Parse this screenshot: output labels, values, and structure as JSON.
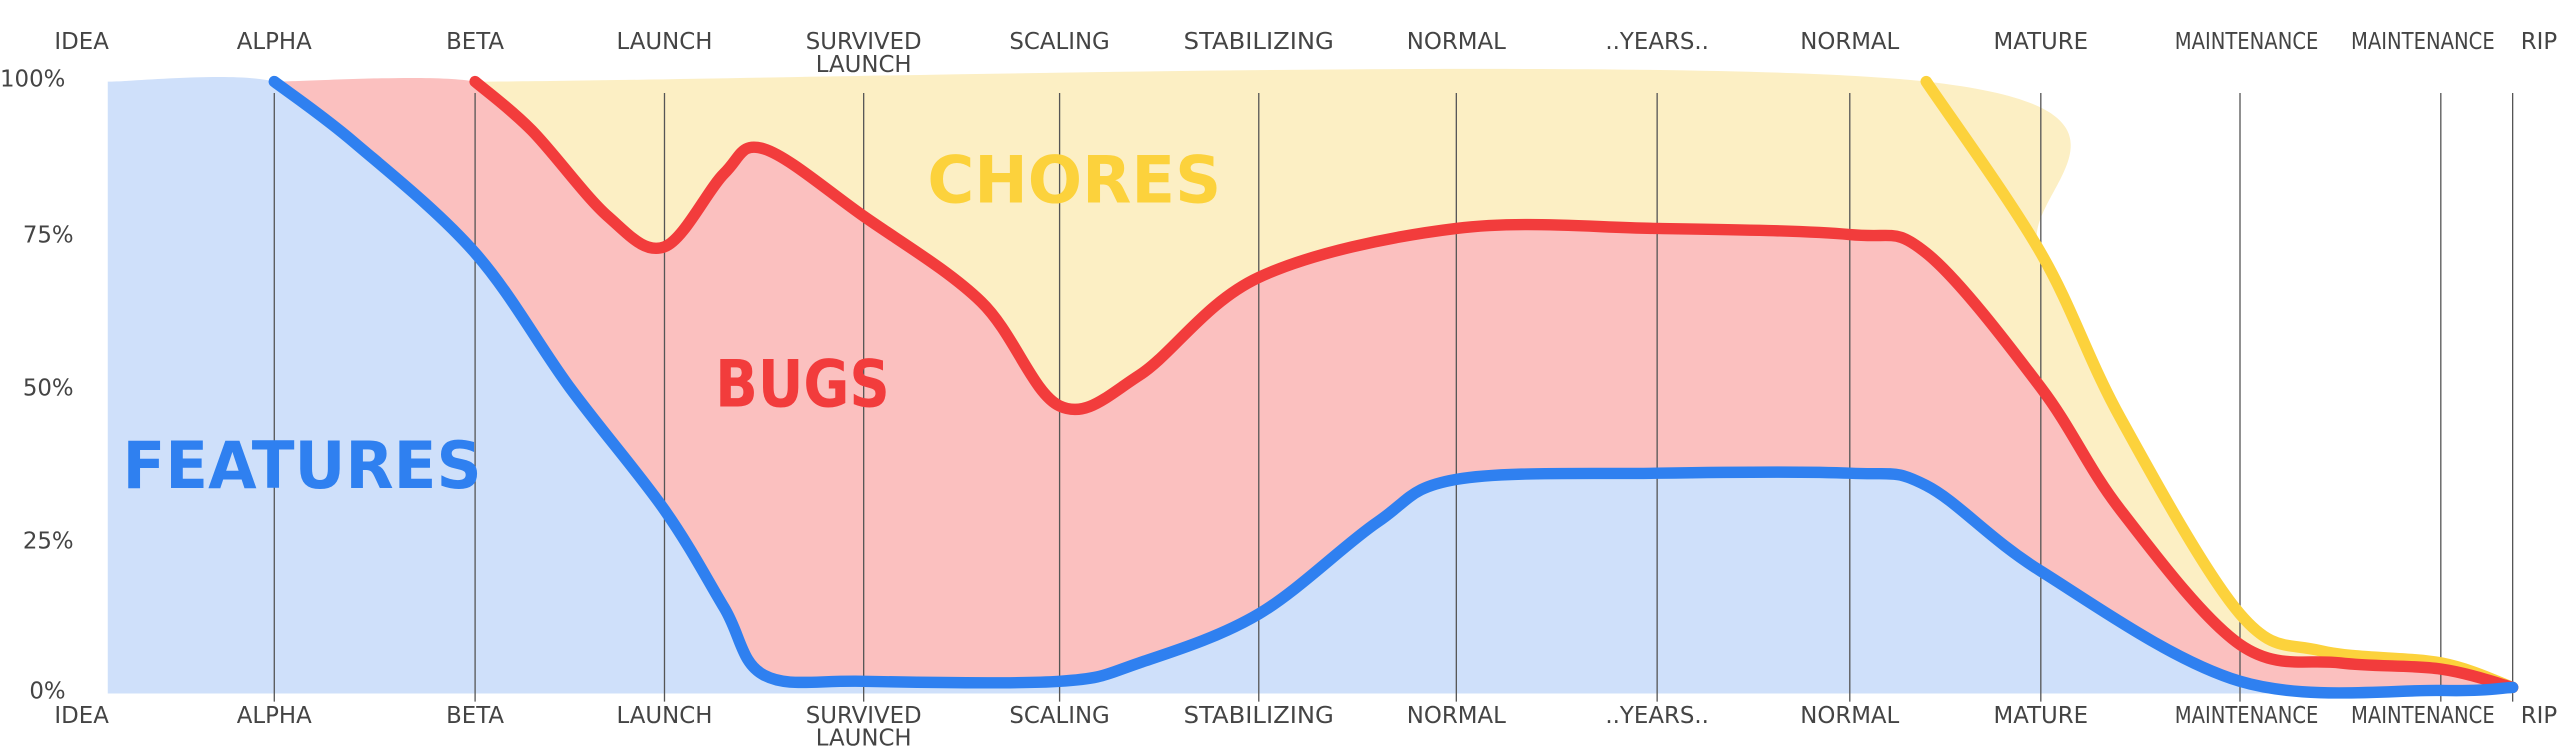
{
  "chart_data": {
    "type": "area",
    "stacked": true,
    "title": "",
    "xlabel": "",
    "ylabel": "",
    "ylim": [
      0,
      100
    ],
    "y_ticks": [
      "0%",
      "25%",
      "50%",
      "75%",
      "100%"
    ],
    "y_tick_values": [
      0,
      25,
      50,
      75,
      100
    ],
    "categories": [
      "IDEA",
      "ALPHA",
      "BETA",
      "LAUNCH",
      "SURVIVED LAUNCH",
      "SCALING",
      "STABILIZING",
      "NORMAL",
      "..YEARS..",
      "NORMAL",
      "MATURE",
      "MAINTENANCE",
      "MAINTENANCE",
      "RIP"
    ],
    "grid": "vertical lines at each stage",
    "legend": "labels inside areas",
    "series": [
      {
        "name": "FEATURES",
        "color": "#2f80f0",
        "fill": "#cfe0fa",
        "points": [
          [
            0,
            100
          ],
          [
            1,
            100
          ],
          [
            1.4,
            90
          ],
          [
            2,
            72
          ],
          [
            2.5,
            50
          ],
          [
            3,
            30
          ],
          [
            3.3,
            14
          ],
          [
            3.5,
            3
          ],
          [
            4,
            2
          ],
          [
            5,
            2
          ],
          [
            5.4,
            5
          ],
          [
            6,
            13
          ],
          [
            6.6,
            28
          ],
          [
            7,
            35
          ],
          [
            8,
            36
          ],
          [
            9,
            36
          ],
          [
            9.4,
            34
          ],
          [
            10,
            20
          ],
          [
            11,
            2
          ],
          [
            12,
            0.5
          ],
          [
            13,
            1
          ]
        ]
      },
      {
        "name": "BUGS",
        "color": "#f23c3c",
        "fill": "#fbc0bf",
        "points": [
          [
            1,
            100
          ],
          [
            2,
            100
          ],
          [
            2.3,
            92
          ],
          [
            2.7,
            78
          ],
          [
            3,
            73
          ],
          [
            3.3,
            85
          ],
          [
            3.5,
            89
          ],
          [
            4,
            78
          ],
          [
            4.6,
            64
          ],
          [
            5,
            47
          ],
          [
            5.4,
            52
          ],
          [
            6,
            68
          ],
          [
            7,
            76
          ],
          [
            8,
            76
          ],
          [
            9,
            75
          ],
          [
            9.4,
            72
          ],
          [
            10,
            50
          ],
          [
            10.4,
            30
          ],
          [
            11,
            8
          ],
          [
            11.5,
            5
          ],
          [
            12,
            4
          ],
          [
            13,
            1
          ]
        ]
      },
      {
        "name": "CHORES",
        "color": "#fcd23c",
        "fill": "#fcefc4",
        "points": [
          [
            2,
            100
          ],
          [
            9.4,
            100
          ],
          [
            10,
            72
          ],
          [
            10.4,
            45
          ],
          [
            11,
            13
          ],
          [
            11.4,
            7
          ],
          [
            12,
            5
          ],
          [
            13,
            1
          ]
        ]
      }
    ]
  }
}
